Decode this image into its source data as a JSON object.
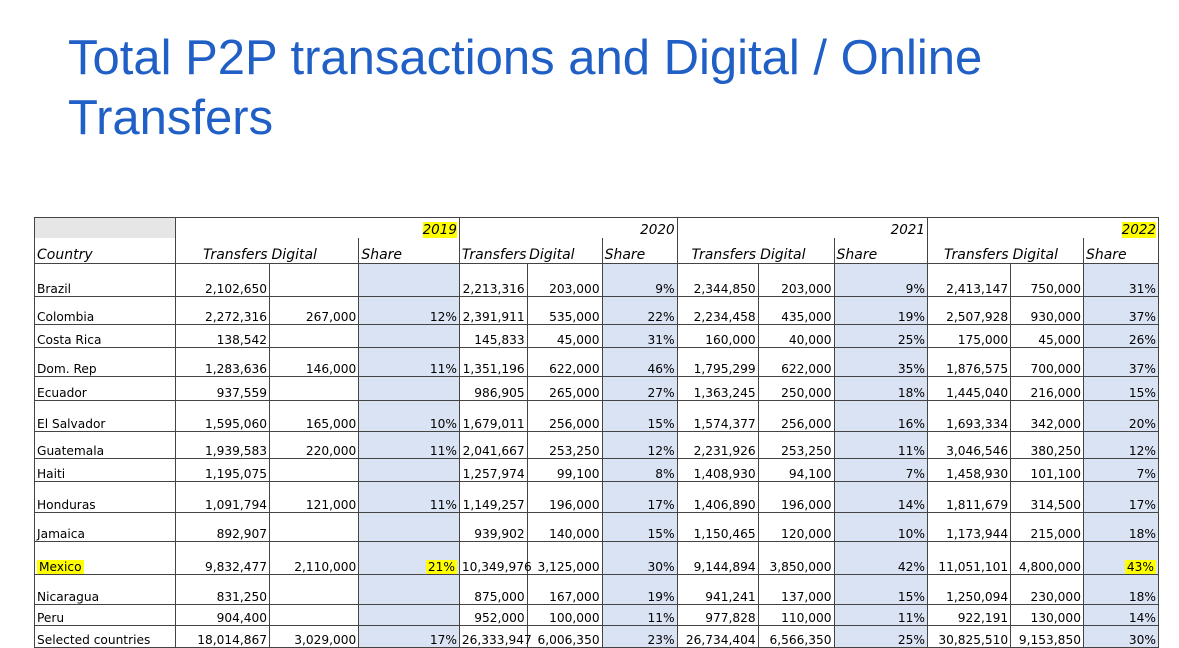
{
  "title": "Total P2P transactions and Digital / Online Transfers",
  "years": [
    "2019",
    "2020",
    "2021",
    "2022"
  ],
  "highlighted_years": [
    "2019",
    "2022"
  ],
  "headers": {
    "country": "Country",
    "transfers": "Transfers",
    "digital": "Digital",
    "share": "Share"
  },
  "colors": {
    "title": "#1f5fc6",
    "share_column": "#dae3f3",
    "header_bg": "#e7e6e6",
    "highlight": "#ffff00"
  },
  "rows": [
    {
      "country": "Brazil",
      "values": [
        "2,102,650",
        "",
        "",
        "2,213,316",
        "203,000",
        "9%",
        "2,344,850",
        "203,000",
        "9%",
        "2,413,147",
        "750,000",
        "31%"
      ]
    },
    {
      "country": "Colombia",
      "values": [
        "2,272,316",
        "267,000",
        "12%",
        "2,391,911",
        "535,000",
        "22%",
        "2,234,458",
        "435,000",
        "19%",
        "2,507,928",
        "930,000",
        "37%"
      ]
    },
    {
      "country": "Costa Rica",
      "values": [
        "138,542",
        "",
        "",
        "145,833",
        "45,000",
        "31%",
        "160,000",
        "40,000",
        "25%",
        "175,000",
        "45,000",
        "26%"
      ]
    },
    {
      "country": "Dom. Rep",
      "values": [
        "1,283,636",
        "146,000",
        "11%",
        "1,351,196",
        "622,000",
        "46%",
        "1,795,299",
        "622,000",
        "35%",
        "1,876,575",
        "700,000",
        "37%"
      ]
    },
    {
      "country": "Ecuador",
      "values": [
        "937,559",
        "",
        "",
        "986,905",
        "265,000",
        "27%",
        "1,363,245",
        "250,000",
        "18%",
        "1,445,040",
        "216,000",
        "15%"
      ]
    },
    {
      "country": "El Salvador",
      "values": [
        "1,595,060",
        "165,000",
        "10%",
        "1,679,011",
        "256,000",
        "15%",
        "1,574,377",
        "256,000",
        "16%",
        "1,693,334",
        "342,000",
        "20%"
      ]
    },
    {
      "country": "Guatemala",
      "values": [
        "1,939,583",
        "220,000",
        "11%",
        "2,041,667",
        "253,250",
        "12%",
        "2,231,926",
        "253,250",
        "11%",
        "3,046,546",
        "380,250",
        "12%"
      ]
    },
    {
      "country": "Haiti",
      "values": [
        "1,195,075",
        "",
        "",
        "1,257,974",
        "99,100",
        "8%",
        "1,408,930",
        "94,100",
        "7%",
        "1,458,930",
        "101,100",
        "7%"
      ]
    },
    {
      "country": "Honduras",
      "values": [
        "1,091,794",
        "121,000",
        "11%",
        "1,149,257",
        "196,000",
        "17%",
        "1,406,890",
        "196,000",
        "14%",
        "1,811,679",
        "314,500",
        "17%"
      ]
    },
    {
      "country": "Jamaica",
      "values": [
        "892,907",
        "",
        "",
        "939,902",
        "140,000",
        "15%",
        "1,150,465",
        "120,000",
        "10%",
        "1,173,944",
        "215,000",
        "18%"
      ]
    },
    {
      "country": "Mexico",
      "values": [
        "9,832,477",
        "2,110,000",
        "21%",
        "10,349,976",
        "3,125,000",
        "30%",
        "9,144,894",
        "3,850,000",
        "42%",
        "11,051,101",
        "4,800,000",
        "43%"
      ]
    },
    {
      "country": "Nicaragua",
      "values": [
        "831,250",
        "",
        "",
        "875,000",
        "167,000",
        "19%",
        "941,241",
        "137,000",
        "15%",
        "1,250,094",
        "230,000",
        "18%"
      ]
    },
    {
      "country": "Peru",
      "values": [
        "904,400",
        "",
        "",
        "952,000",
        "100,000",
        "11%",
        "977,828",
        "110,000",
        "11%",
        "922,191",
        "130,000",
        "14%"
      ]
    },
    {
      "country": "Selected countries",
      "values": [
        "18,014,867",
        "3,029,000",
        "17%",
        "26,333,947",
        "6,006,350",
        "23%",
        "26,734,404",
        "6,566,350",
        "25%",
        "30,825,510",
        "9,153,850",
        "30%"
      ]
    }
  ]
}
